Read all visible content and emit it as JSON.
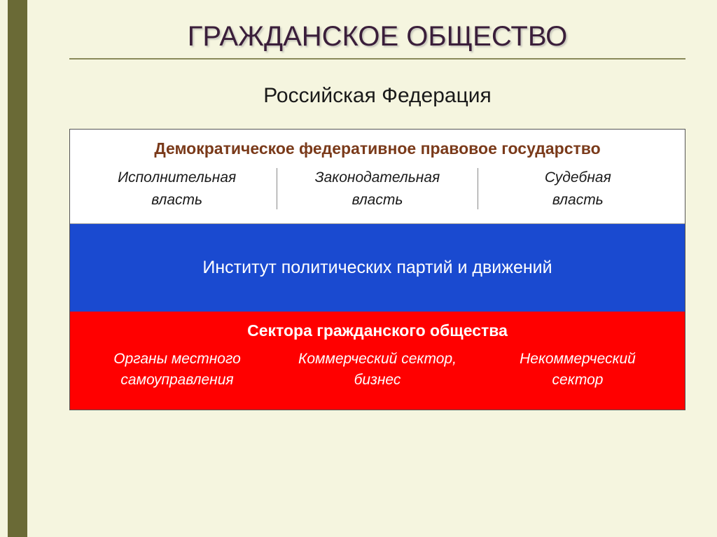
{
  "slide": {
    "title": "ГРАЖДАНСКОЕ ОБЩЕСТВО",
    "subtitle": "Российская Федерация",
    "background_color": "#f5f5df",
    "left_bar_color": "#6a6a36",
    "title_color": "#3a1e3a",
    "title_fontsize": 40
  },
  "diagram": {
    "type": "layered-table",
    "border_color": "#555555",
    "layers": [
      {
        "id": "white",
        "background_color": "#ffffff",
        "header": {
          "text": "Демократическое федеративное правовое государство",
          "color": "#7a3a1a",
          "fontsize": 23,
          "bold": true
        },
        "columns": [
          {
            "line1": "Исполнительная",
            "line2": "власть"
          },
          {
            "line1": "Законодательная",
            "line2": "власть"
          },
          {
            "line1": "Судебная",
            "line2": "власть"
          }
        ],
        "column_text_color": "#1a1a1a",
        "column_fontsize": 21,
        "column_italic": true,
        "separator_color": "#888888"
      },
      {
        "id": "blue",
        "background_color": "#1a4ad0",
        "text": "Институт политических партий и движений",
        "text_color": "#ffffff",
        "fontsize": 25,
        "padding_vertical": 48
      },
      {
        "id": "red",
        "background_color": "#ff0000",
        "header": {
          "text": "Сектора гражданского общества",
          "color": "#ffffff",
          "fontsize": 23,
          "bold": true
        },
        "columns": [
          {
            "line1": "Органы местного",
            "line2": "самоуправления"
          },
          {
            "line1": "Коммерческий сектор,",
            "line2": "бизнес"
          },
          {
            "line1": "Некоммерческий",
            "line2": "сектор"
          }
        ],
        "column_text_color": "#ffffff",
        "column_fontsize": 21,
        "column_italic": true
      }
    ]
  }
}
